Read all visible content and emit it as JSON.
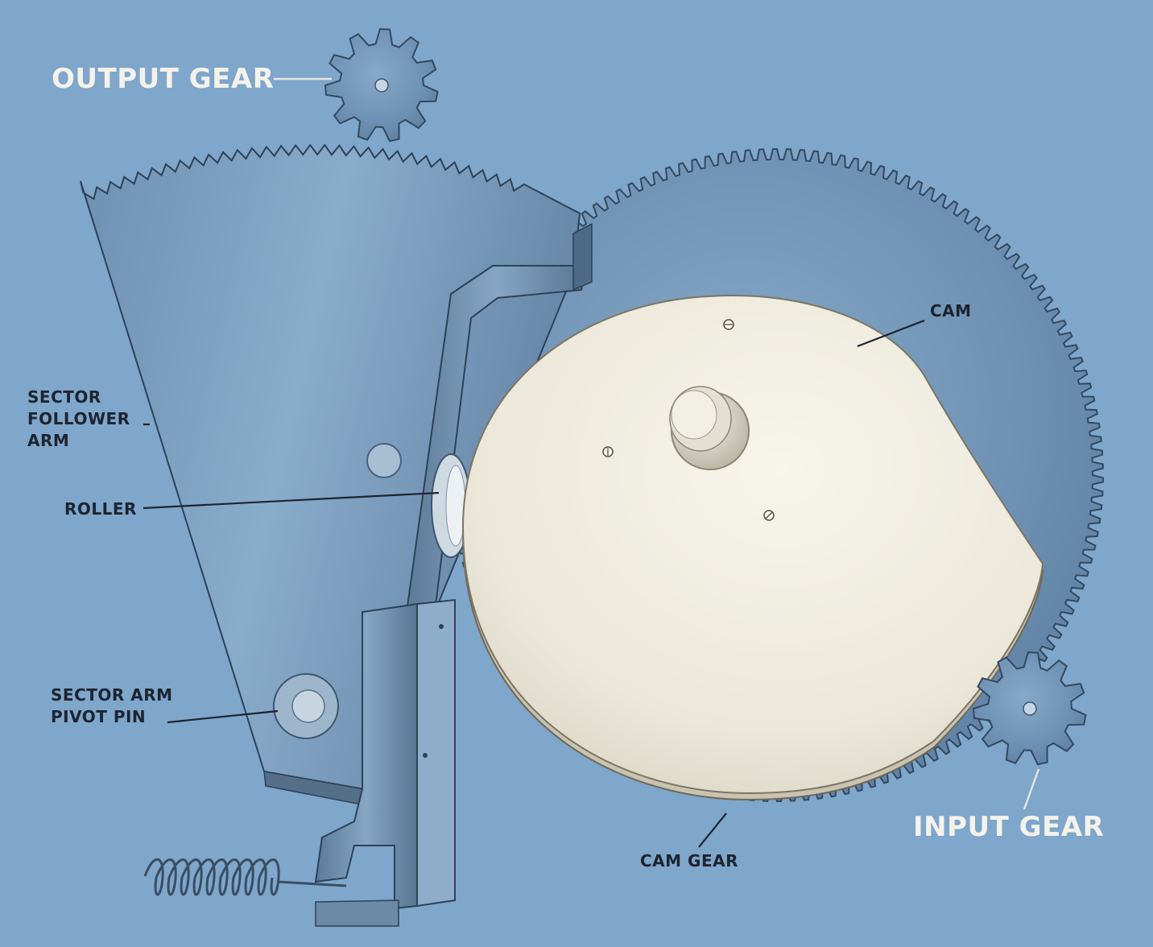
{
  "colors": {
    "background": "#7fa6cb",
    "gear_fill": "#6d8fb0",
    "gear_edge": "#34495e",
    "cam_fill": "#efece0",
    "label_light": "#f4f2ea",
    "label_dark": "#1d2430"
  },
  "labels": {
    "output_gear": "OUTPUT GEAR",
    "cam": "CAM",
    "sector_follower_arm": [
      "SECTOR",
      "FOLLOWER",
      "ARM"
    ],
    "roller": "ROLLER",
    "sector_arm_pivot_pin": [
      "SECTOR ARM",
      "PIVOT  PIN"
    ],
    "cam_gear": "CAM GEAR",
    "input_gear": "INPUT GEAR"
  }
}
